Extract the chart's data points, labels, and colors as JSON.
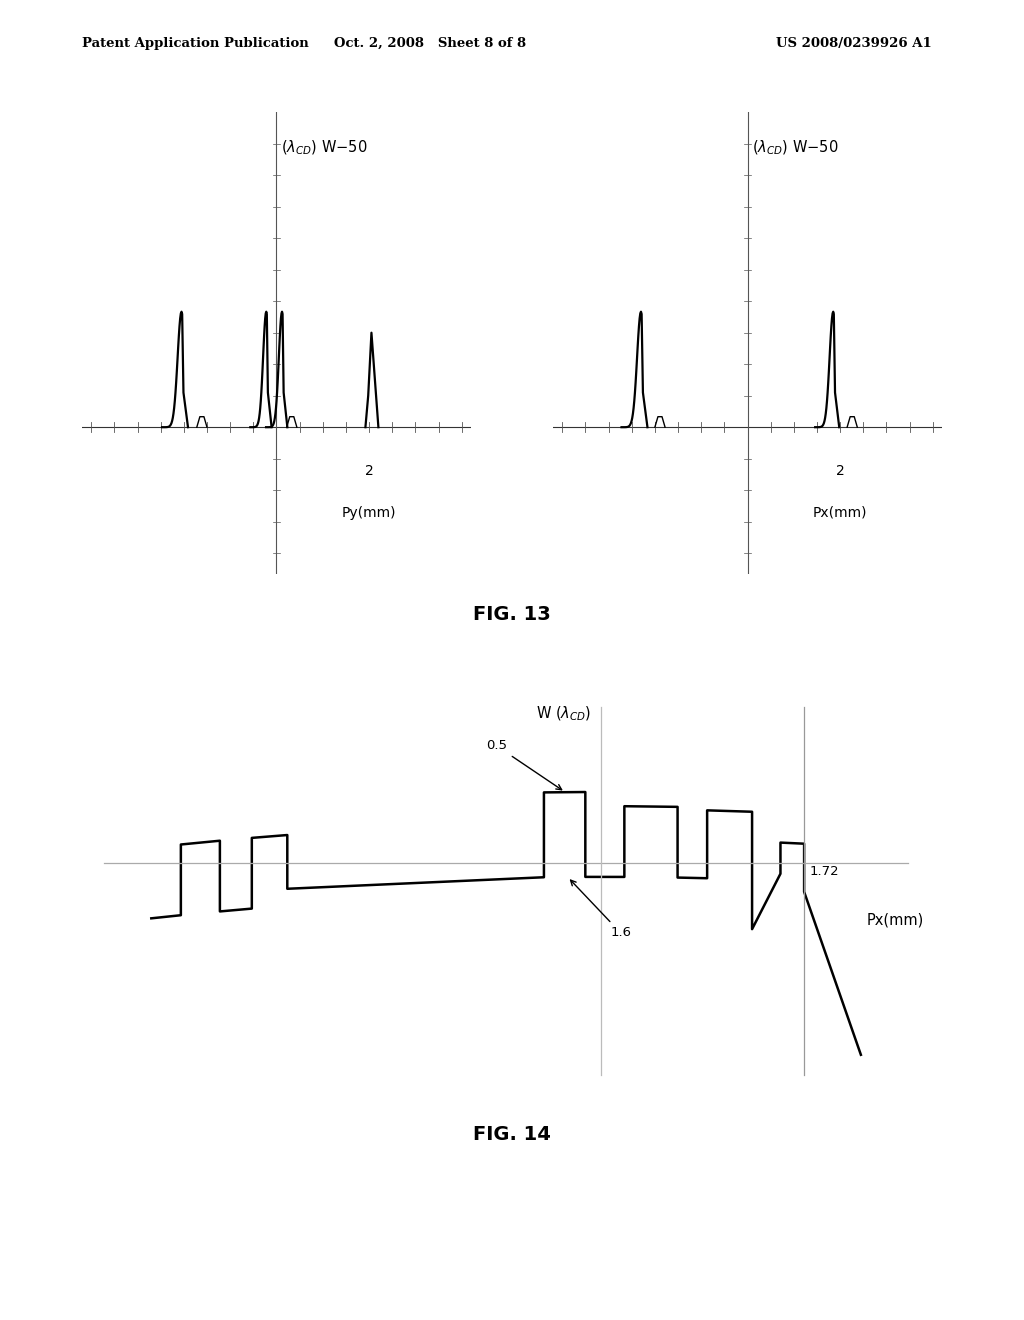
{
  "header_left": "Patent Application Publication",
  "header_mid": "Oct. 2, 2008   Sheet 8 of 8",
  "header_right": "US 2008/0239926 A1",
  "fig13_title": "FIG. 13",
  "fig14_title": "FIG. 14",
  "background_color": "#ffffff",
  "line_color": "#000000"
}
